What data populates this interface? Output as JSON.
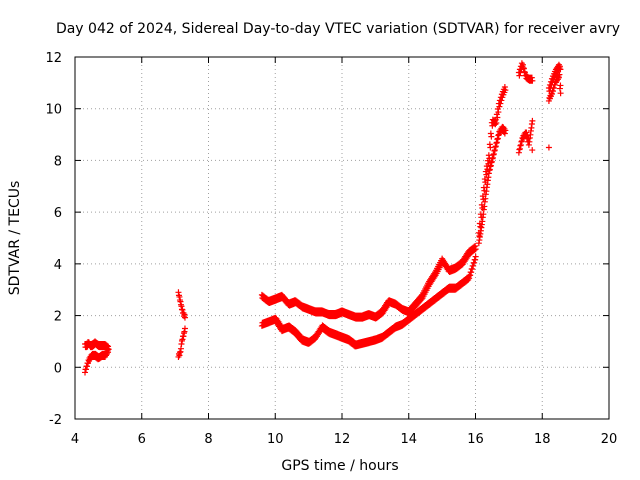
{
  "chart_data": {
    "type": "scatter",
    "title": "Day 042 of 2024, Sidereal Day-to-day VTEC variation (SDTVAR) for receiver avry",
    "xlabel": "GPS time / hours",
    "ylabel": "SDTVAR / TECUs",
    "xlim": [
      4,
      20
    ],
    "ylim": [
      -2,
      12
    ],
    "xticks": [
      4,
      6,
      8,
      10,
      12,
      14,
      16,
      18,
      20
    ],
    "yticks": [
      -2,
      0,
      2,
      4,
      6,
      8,
      10,
      12
    ],
    "grid": true,
    "marker": "+",
    "color": "#ff0000",
    "series": [
      {
        "name": "avry",
        "segments": [
          {
            "x": [
              4.3,
              4.35,
              4.4,
              4.45,
              4.5,
              4.6,
              4.7,
              4.8,
              4.9,
              5.0
            ],
            "lo": [
              -0.2,
              0.0,
              0.2,
              0.3,
              0.4,
              0.4,
              0.3,
              0.4,
              0.4,
              0.6
            ],
            "hi": [
              0.9,
              0.9,
              1.0,
              0.9,
              0.9,
              1.0,
              0.9,
              0.9,
              0.9,
              0.8
            ]
          },
          {
            "x": [
              7.1,
              7.15,
              7.2,
              7.25,
              7.3
            ],
            "lo": [
              0.4,
              0.5,
              1.0,
              1.2,
              1.5
            ],
            "hi": [
              2.9,
              2.6,
              2.3,
              2.1,
              2.0
            ]
          },
          {
            "x": [
              9.6,
              9.8,
              10.0,
              10.2,
              10.4,
              10.6,
              10.8,
              11.0,
              11.2,
              11.4,
              11.6,
              11.8,
              12.0,
              12.2,
              12.4,
              12.6,
              12.8,
              13.0,
              13.2,
              13.4,
              13.6,
              13.8,
              14.0,
              14.2,
              14.4,
              14.6,
              14.8,
              15.0,
              15.2,
              15.4,
              15.6,
              15.8,
              16.0
            ],
            "lo": [
              1.6,
              1.7,
              1.8,
              1.4,
              1.5,
              1.3,
              1.0,
              0.9,
              1.1,
              1.5,
              1.3,
              1.2,
              1.1,
              1.0,
              0.8,
              null,
              null,
              1.0,
              1.1,
              1.3,
              1.5,
              1.6,
              1.8,
              2.0,
              2.2,
              2.4,
              2.6,
              2.8,
              3.0,
              3.0,
              3.2,
              3.4,
              4.2
            ],
            "hi": [
              2.8,
              2.6,
              2.7,
              2.8,
              2.5,
              2.6,
              2.4,
              2.3,
              2.2,
              2.2,
              2.1,
              2.1,
              2.2,
              2.1,
              2.0,
              2.0,
              2.1,
              2.0,
              2.2,
              2.6,
              2.5,
              2.3,
              2.2,
              2.5,
              2.8,
              3.3,
              3.7,
              4.2,
              3.8,
              3.9,
              4.1,
              4.5,
              4.7
            ]
          },
          {
            "x": [
              16.1,
              16.2,
              16.3,
              16.4,
              16.5,
              16.6,
              16.7,
              16.8,
              16.9
            ],
            "lo": [
              4.8,
              5.6,
              6.6,
              7.5,
              8.0,
              8.5,
              9.0,
              9.2,
              9.0
            ],
            "hi": [
              5.2,
              6.4,
              7.5,
              8.2,
              9.6,
              9.5,
              10.2,
              10.6,
              10.9
            ]
          },
          {
            "x": [
              17.3,
              17.4,
              17.5,
              17.6,
              17.7
            ],
            "lo": [
              8.3,
              8.8,
              9.0,
              8.6,
              9.5
            ],
            "hi": [
              11.4,
              11.8,
              11.3,
              11.2,
              11.2
            ]
          },
          {
            "x": [
              18.2,
              18.3,
              18.4,
              18.5,
              18.55
            ],
            "lo": [
              10.3,
              10.6,
              11.0,
              11.2,
              10.5
            ],
            "hi": [
              10.8,
              11.2,
              11.5,
              11.7,
              11.6
            ]
          }
        ],
        "outliers": [
          [
            18.2,
            8.5
          ],
          [
            17.7,
            8.4
          ],
          [
            18.55,
            10.6
          ]
        ]
      }
    ]
  }
}
